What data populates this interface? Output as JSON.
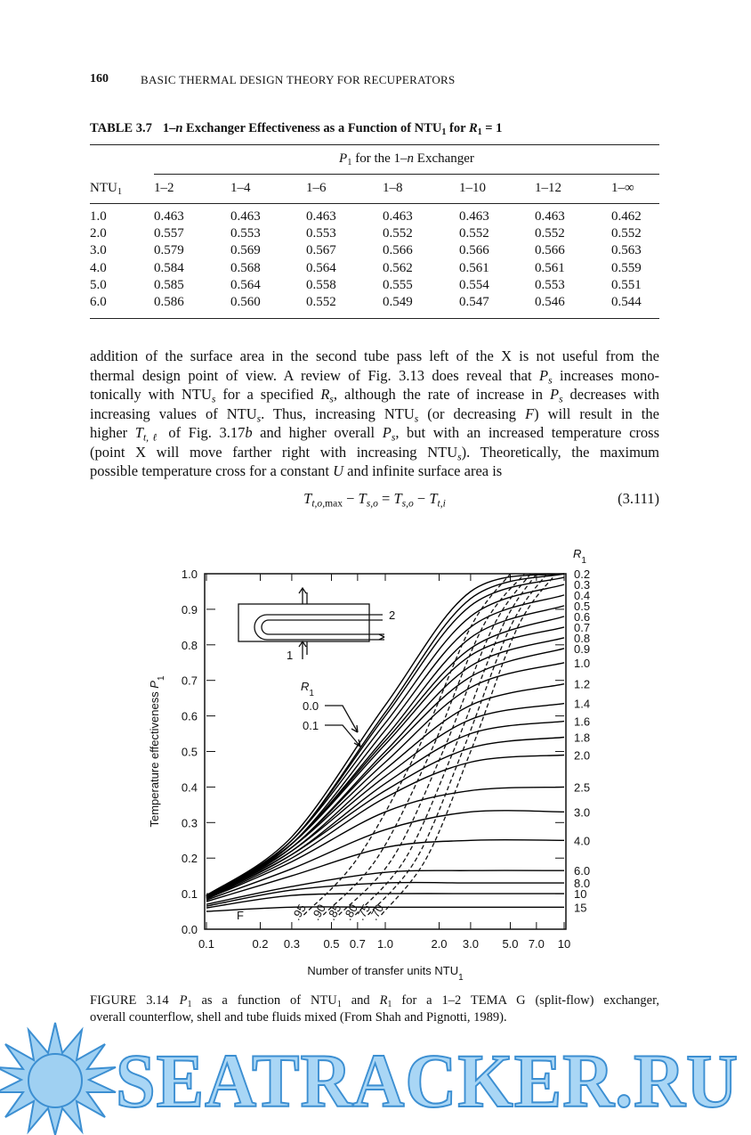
{
  "header": {
    "page": "160",
    "title": "BASIC THERMAL DESIGN THEORY FOR RECUPERATORS"
  },
  "table": {
    "label": "TABLE 3.7",
    "caption": [
      "1–",
      {
        "text": "n",
        "style": "i"
      },
      " Exchanger Effectiveness as a Function of NTU",
      {
        "text": "1",
        "style": "sub"
      },
      " for ",
      {
        "text": "R",
        "style": "i"
      },
      {
        "text": "1",
        "style": "sub"
      },
      " = 1"
    ],
    "group_header": [
      {
        "text": "P",
        "style": "i"
      },
      {
        "text": "1",
        "style": "sub"
      },
      " for the 1–",
      {
        "text": "n",
        "style": "i"
      },
      " Exchanger"
    ],
    "row_header": [
      "NTU",
      {
        "text": "1",
        "style": "sub"
      }
    ],
    "columns": [
      "1–2",
      "1–4",
      "1–6",
      "1–8",
      "1–10",
      "1–12",
      "1–∞"
    ],
    "rows": [
      [
        "1.0",
        "0.463",
        "0.463",
        "0.463",
        "0.463",
        "0.463",
        "0.463",
        "0.462"
      ],
      [
        "2.0",
        "0.557",
        "0.553",
        "0.553",
        "0.552",
        "0.552",
        "0.552",
        "0.552"
      ],
      [
        "3.0",
        "0.579",
        "0.569",
        "0.567",
        "0.566",
        "0.566",
        "0.566",
        "0.563"
      ],
      [
        "4.0",
        "0.584",
        "0.568",
        "0.564",
        "0.562",
        "0.561",
        "0.561",
        "0.559"
      ],
      [
        "5.0",
        "0.585",
        "0.564",
        "0.558",
        "0.555",
        "0.554",
        "0.553",
        "0.551"
      ],
      [
        "6.0",
        "0.586",
        "0.560",
        "0.552",
        "0.549",
        "0.547",
        "0.546",
        "0.544"
      ]
    ]
  },
  "paragraph": {
    "lines": [
      [
        "addition of the surface area in the second tube pass left of the X is not useful from the"
      ],
      [
        "thermal design point of view. A review of Fig. 3.13 does reveal that ",
        {
          "text": "P",
          "style": "i"
        },
        {
          "text": "s",
          "style": "subi"
        },
        " increases mono-"
      ],
      [
        "tonically with NTU",
        {
          "text": "s",
          "style": "subi"
        },
        " for a specified ",
        {
          "text": "R",
          "style": "i"
        },
        {
          "text": "s",
          "style": "subi"
        },
        ", although the rate of increase in ",
        {
          "text": "P",
          "style": "i"
        },
        {
          "text": "s",
          "style": "subi"
        },
        " decreases with"
      ],
      [
        "increasing values of NTU",
        {
          "text": "s",
          "style": "subi"
        },
        ". Thus, increasing NTU",
        {
          "text": "s",
          "style": "subi"
        },
        " (or decreasing ",
        {
          "text": "F",
          "style": "i"
        },
        ") will result in the"
      ],
      [
        "higher ",
        {
          "text": "T",
          "style": "i"
        },
        {
          "text": "t,ℓ",
          "style": "subi"
        },
        " of Fig. 3.17",
        {
          "text": "b",
          "style": "i"
        },
        " and higher overall ",
        {
          "text": "P",
          "style": "i"
        },
        {
          "text": "s",
          "style": "subi"
        },
        ", but with an increased temperature cross"
      ],
      [
        "(point X will move farther right with increasing NTU",
        {
          "text": "s",
          "style": "subi"
        },
        "). Theoretically, the maximum"
      ],
      [
        "possible temperature cross for a constant ",
        {
          "text": "U",
          "style": "i"
        },
        " and infinite surface area is"
      ]
    ]
  },
  "equation": {
    "body": [
      {
        "text": "T",
        "style": "i"
      },
      {
        "text": "t,o,",
        "style": "subi"
      },
      {
        "text": "max",
        "style": "sub"
      },
      " − ",
      {
        "text": "T",
        "style": "i"
      },
      {
        "text": "s,o",
        "style": "subi"
      },
      " = ",
      {
        "text": "T",
        "style": "i"
      },
      {
        "text": "s,o",
        "style": "subi"
      },
      " − ",
      {
        "text": "T",
        "style": "i"
      },
      {
        "text": "t,i",
        "style": "subi"
      }
    ],
    "number": "(3.111)"
  },
  "chart_data": {
    "type": "line",
    "log_x": true,
    "xlabel": [
      "Number of transfer units NTU",
      {
        "text": "1",
        "style": "sub"
      }
    ],
    "ylabel": [
      "Temperature effectiveness ",
      {
        "text": "P",
        "style": "i"
      },
      {
        "text": "1",
        "style": "sub"
      }
    ],
    "legend_title": [
      {
        "text": "R",
        "style": "i"
      },
      {
        "text": "1",
        "style": "sub"
      }
    ],
    "inset_title": [
      {
        "text": "R",
        "style": "i"
      },
      {
        "text": "1",
        "style": "sub"
      }
    ],
    "inset_labels": {
      "outlet": "2",
      "inlet": "1"
    },
    "f_title": "F",
    "xlim": [
      0.1,
      10
    ],
    "ylim": [
      0,
      1
    ],
    "xticks": [
      0.1,
      0.2,
      0.3,
      0.5,
      0.7,
      {
        "value": 1,
        "label": "1.0"
      },
      {
        "value": 2,
        "label": "2.0"
      },
      {
        "value": 3,
        "label": "3.0"
      },
      {
        "value": 5,
        "label": "5.0"
      },
      {
        "value": 7,
        "label": "7.0"
      },
      10
    ],
    "yticks": [
      {
        "value": 0,
        "label": "0.0"
      },
      0.1,
      0.2,
      0.3,
      0.4,
      0.5,
      0.6,
      0.7,
      0.8,
      0.9,
      {
        "value": 1,
        "label": "1.0"
      }
    ],
    "x": [
      0.1,
      0.3,
      1,
      3,
      10
    ],
    "series": [
      {
        "name": "0.0",
        "color": "#000000",
        "values": [
          0.095,
          0.26,
          0.63,
          0.95,
          1.0
        ]
      },
      {
        "name": "0.1",
        "color": "#000000",
        "values": [
          0.095,
          0.25,
          0.61,
          0.93,
          1.0
        ]
      },
      {
        "name": "0.2",
        "color": "#000000",
        "values": [
          0.095,
          0.25,
          0.6,
          0.91,
          0.99
        ]
      },
      {
        "name": "0.3",
        "color": "#000000",
        "values": [
          0.095,
          0.25,
          0.58,
          0.88,
          0.97
        ]
      },
      {
        "name": "0.4",
        "color": "#000000",
        "values": [
          0.094,
          0.24,
          0.56,
          0.85,
          0.94
        ]
      },
      {
        "name": "0.5",
        "color": "#000000",
        "values": [
          0.094,
          0.24,
          0.54,
          0.82,
          0.91
        ]
      },
      {
        "name": "0.6",
        "color": "#000000",
        "values": [
          0.094,
          0.24,
          0.53,
          0.79,
          0.88
        ]
      },
      {
        "name": "0.7",
        "color": "#000000",
        "values": [
          0.093,
          0.24,
          0.52,
          0.77,
          0.85
        ]
      },
      {
        "name": "0.8",
        "color": "#000000",
        "values": [
          0.093,
          0.23,
          0.5,
          0.74,
          0.82
        ]
      },
      {
        "name": "0.9",
        "color": "#000000",
        "values": [
          0.093,
          0.23,
          0.49,
          0.71,
          0.79
        ]
      },
      {
        "name": "1.0",
        "color": "#000000",
        "values": [
          0.092,
          0.23,
          0.47,
          0.68,
          0.75
        ]
      },
      {
        "name": "1.2",
        "color": "#000000",
        "values": [
          0.091,
          0.22,
          0.45,
          0.63,
          0.69
        ]
      },
      {
        "name": "1.4",
        "color": "#000000",
        "values": [
          0.09,
          0.22,
          0.43,
          0.59,
          0.635
        ]
      },
      {
        "name": "1.6",
        "color": "#000000",
        "values": [
          0.089,
          0.21,
          0.41,
          0.55,
          0.585
        ]
      },
      {
        "name": "1.8",
        "color": "#000000",
        "values": [
          0.088,
          0.21,
          0.39,
          0.51,
          0.54
        ]
      },
      {
        "name": "2.0",
        "color": "#000000",
        "values": [
          0.087,
          0.2,
          0.37,
          0.47,
          0.49
        ]
      },
      {
        "name": "2.5",
        "color": "#000000",
        "values": [
          0.085,
          0.19,
          0.33,
          0.39,
          0.4
        ]
      },
      {
        "name": "3.0",
        "color": "#000000",
        "values": [
          0.082,
          0.17,
          0.28,
          0.33,
          0.33
        ]
      },
      {
        "name": "4.0",
        "color": "#000000",
        "values": [
          0.078,
          0.15,
          0.23,
          0.25,
          0.25
        ]
      },
      {
        "name": "6.0",
        "color": "#000000",
        "values": [
          0.07,
          0.12,
          0.16,
          0.165,
          0.165
        ]
      },
      {
        "name": "8.0",
        "color": "#000000",
        "values": [
          0.065,
          0.11,
          0.13,
          0.13,
          0.13
        ]
      },
      {
        "name": "10",
        "color": "#000000",
        "values": [
          0.06,
          0.095,
          0.1,
          0.1,
          0.1
        ]
      },
      {
        "name": "15",
        "color": "#000000",
        "values": [
          0.05,
          0.062,
          0.062,
          0.062,
          0.062
        ]
      }
    ],
    "f_curves": [
      {
        "name": ".95",
        "x": [
          0.35,
          0.7,
          1.5,
          3,
          5
        ],
        "values": [
          0.04,
          0.2,
          0.5,
          0.85,
          1.0
        ]
      },
      {
        "name": ".90",
        "x": [
          0.45,
          0.9,
          1.8,
          3.5,
          6
        ],
        "values": [
          0.04,
          0.2,
          0.5,
          0.85,
          1.0
        ]
      },
      {
        "name": ".85",
        "x": [
          0.55,
          1.1,
          2.1,
          4,
          6.5
        ],
        "values": [
          0.04,
          0.2,
          0.5,
          0.85,
          1.0
        ]
      },
      {
        "name": ".80",
        "x": [
          0.68,
          1.3,
          2.4,
          4.5,
          7
        ],
        "values": [
          0.04,
          0.2,
          0.5,
          0.85,
          1.0
        ]
      },
      {
        "name": ".75",
        "x": [
          0.8,
          1.5,
          2.7,
          5,
          8
        ],
        "values": [
          0.04,
          0.2,
          0.5,
          0.85,
          1.0
        ]
      },
      {
        "name": ".70",
        "x": [
          0.95,
          1.7,
          3,
          5.5,
          9
        ],
        "values": [
          0.04,
          0.2,
          0.5,
          0.85,
          1.0
        ]
      }
    ]
  },
  "figure_caption": {
    "label": "FIGURE 3.14",
    "lines": [
      [
        {
          "text": "P",
          "style": "i"
        },
        {
          "text": "1",
          "style": "sub"
        },
        " as a function of NTU",
        {
          "text": "1",
          "style": "sub"
        },
        " and ",
        {
          "text": "R",
          "style": "i"
        },
        {
          "text": "1",
          "style": "sub"
        },
        " for a 1–2 TEMA G (split-flow) exchanger,"
      ],
      [
        "overall counterflow, shell and tube fluids mixed (From Shah and Pignotti, 1989)."
      ]
    ]
  },
  "watermark": "SEATRACKER.RU"
}
